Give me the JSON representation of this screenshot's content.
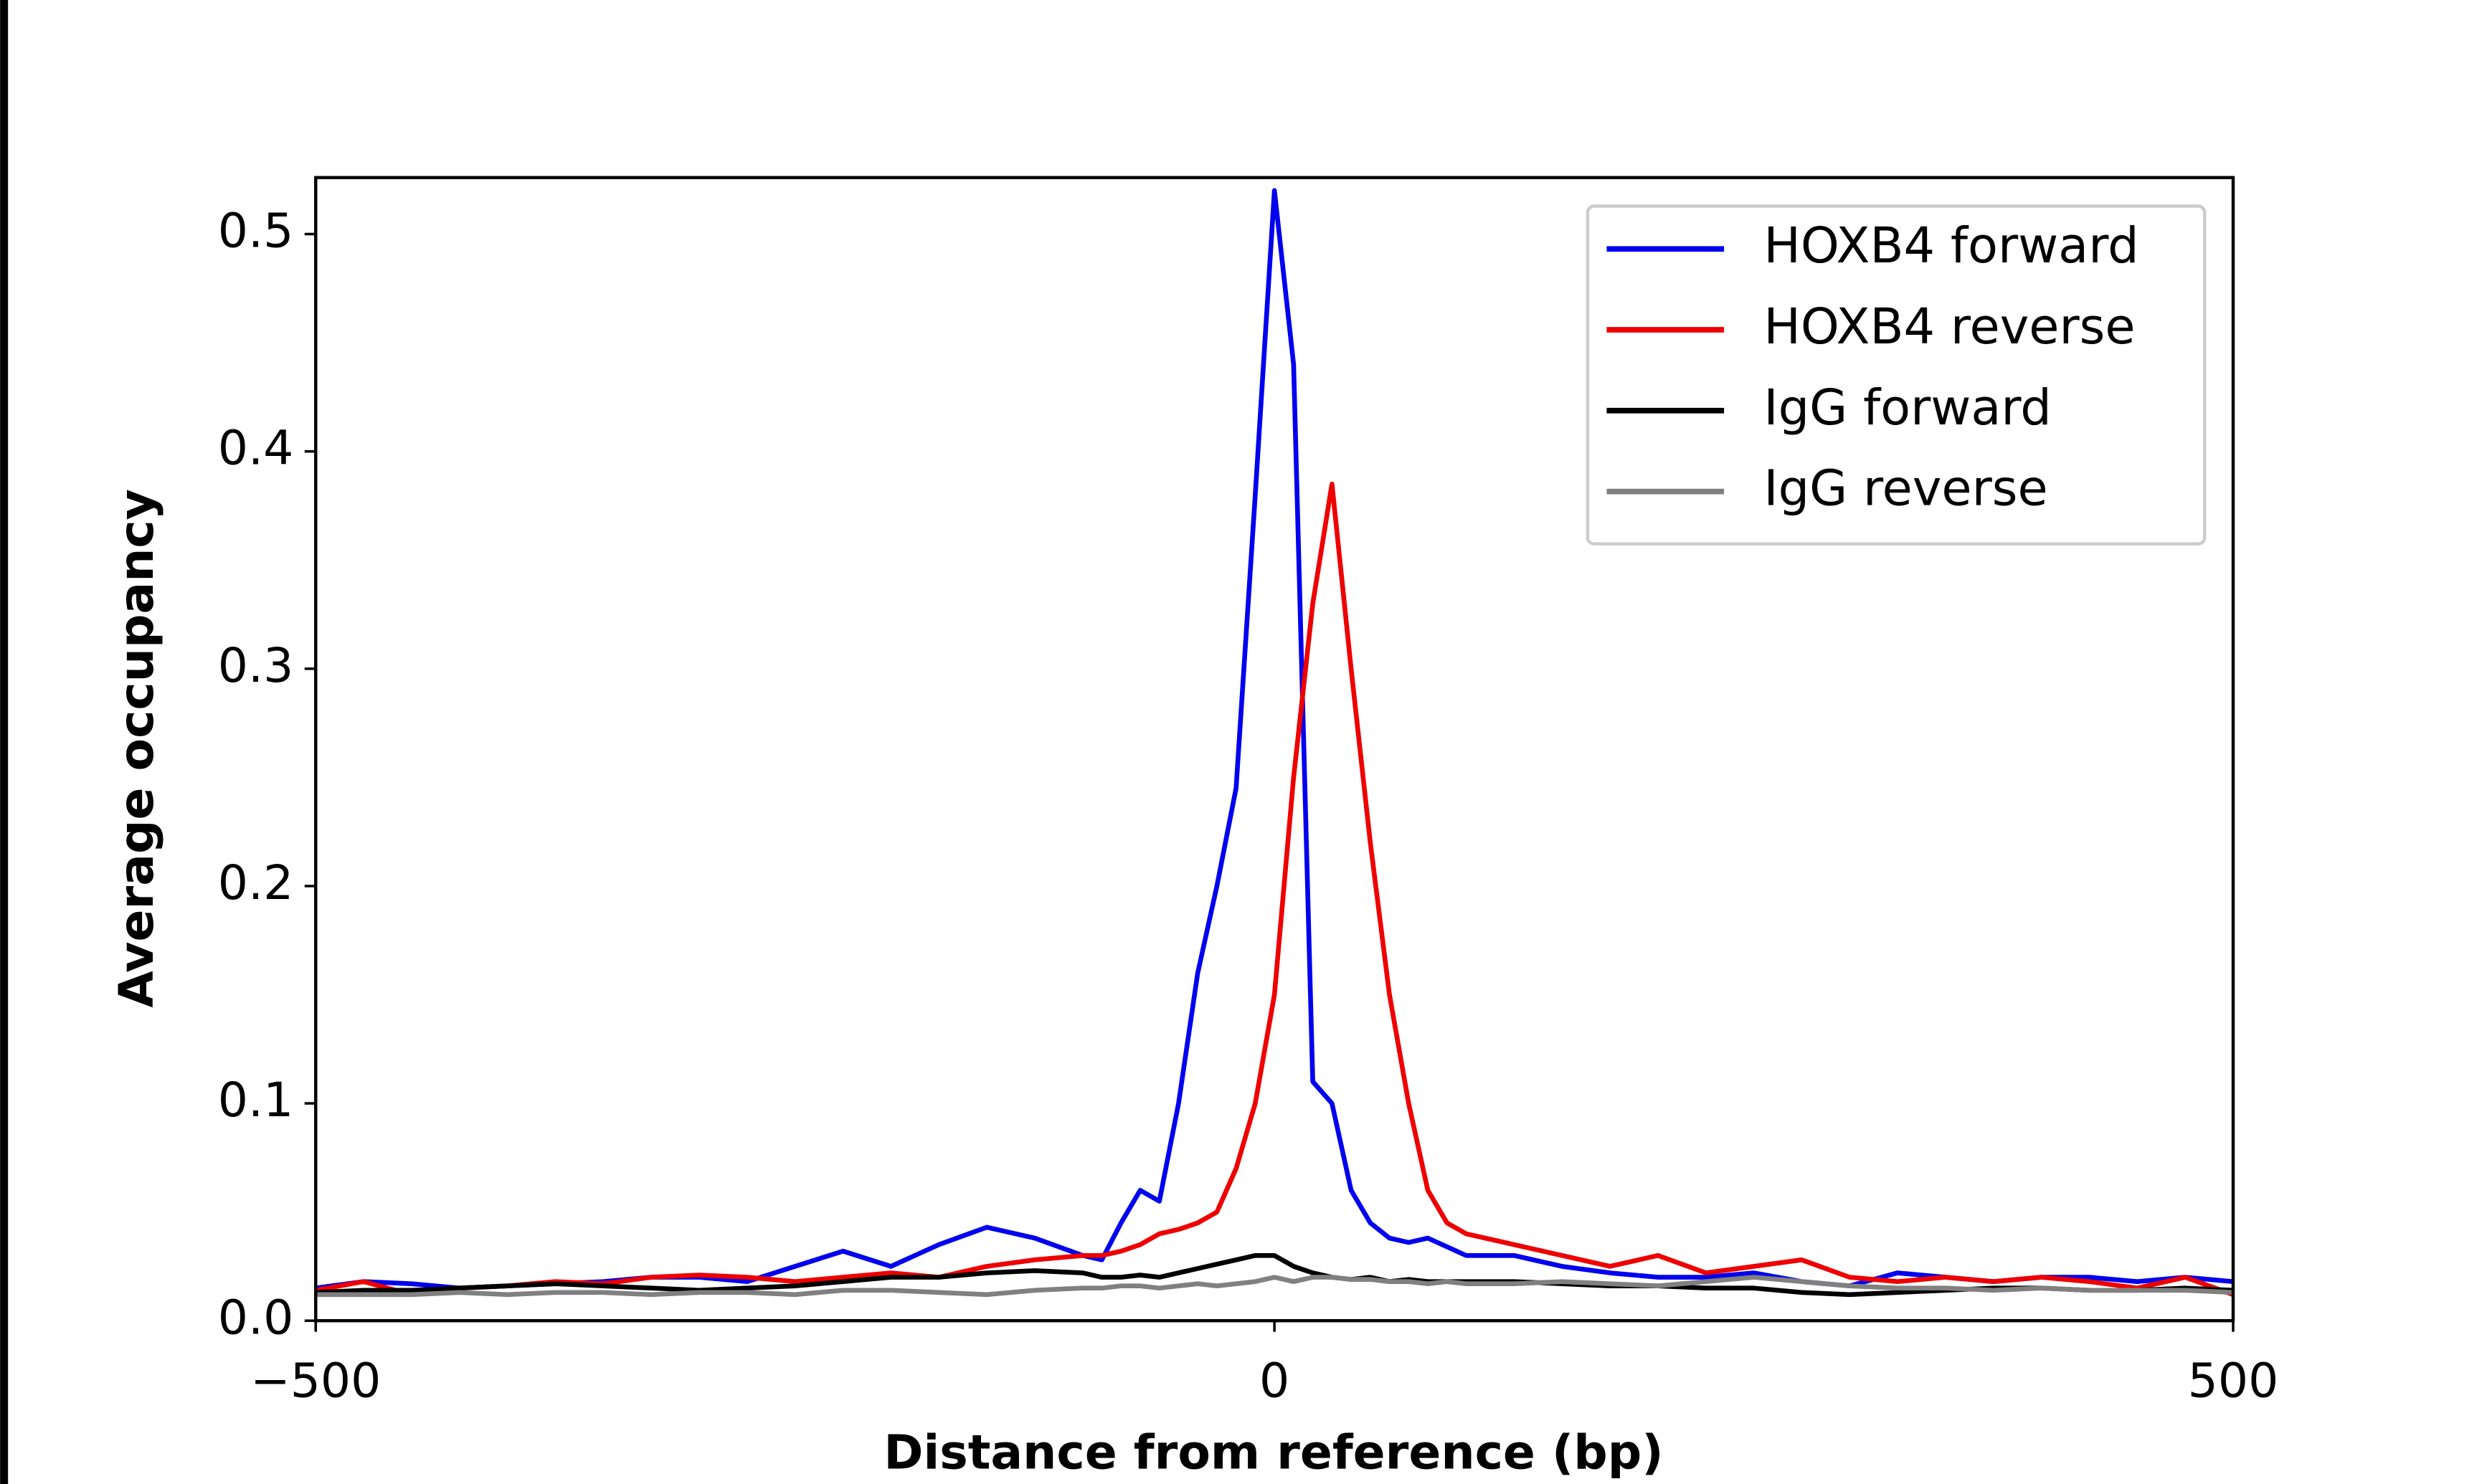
{
  "chart_data": {
    "type": "line",
    "xlabel": "Distance from reference (bp)",
    "ylabel": "Average occupancy",
    "x": [
      -500,
      -475,
      -450,
      -425,
      -400,
      -375,
      -350,
      -325,
      -300,
      -275,
      -250,
      -225,
      -200,
      -175,
      -150,
      -125,
      -100,
      -90,
      -80,
      -70,
      -60,
      -50,
      -40,
      -30,
      -20,
      -10,
      0,
      10,
      20,
      30,
      40,
      50,
      60,
      70,
      80,
      90,
      100,
      125,
      150,
      175,
      200,
      225,
      250,
      275,
      300,
      325,
      350,
      375,
      400,
      425,
      450,
      475,
      500
    ],
    "series": [
      {
        "name": "HOXB4 forward",
        "color": "#0000ee",
        "values": [
          0.015,
          0.018,
          0.017,
          0.015,
          0.016,
          0.017,
          0.018,
          0.02,
          0.02,
          0.018,
          0.025,
          0.032,
          0.025,
          0.035,
          0.043,
          0.038,
          0.03,
          0.028,
          0.045,
          0.06,
          0.055,
          0.1,
          0.16,
          0.2,
          0.245,
          0.38,
          0.52,
          0.44,
          0.11,
          0.1,
          0.06,
          0.045,
          0.038,
          0.036,
          0.038,
          0.034,
          0.03,
          0.03,
          0.025,
          0.022,
          0.02,
          0.02,
          0.022,
          0.018,
          0.016,
          0.022,
          0.02,
          0.018,
          0.02,
          0.02,
          0.018,
          0.02,
          0.018
        ]
      },
      {
        "name": "HOXB4 reverse",
        "color": "#ee0000",
        "values": [
          0.014,
          0.018,
          0.012,
          0.015,
          0.016,
          0.018,
          0.017,
          0.02,
          0.021,
          0.02,
          0.018,
          0.02,
          0.022,
          0.02,
          0.025,
          0.028,
          0.03,
          0.03,
          0.032,
          0.035,
          0.04,
          0.042,
          0.045,
          0.05,
          0.07,
          0.1,
          0.15,
          0.25,
          0.33,
          0.385,
          0.3,
          0.22,
          0.15,
          0.1,
          0.06,
          0.045,
          0.04,
          0.035,
          0.03,
          0.025,
          0.03,
          0.022,
          0.025,
          0.028,
          0.02,
          0.018,
          0.02,
          0.018,
          0.02,
          0.018,
          0.015,
          0.02,
          0.012
        ]
      },
      {
        "name": "IgG forward",
        "color": "#000000",
        "values": [
          0.013,
          0.014,
          0.014,
          0.015,
          0.016,
          0.017,
          0.016,
          0.015,
          0.014,
          0.015,
          0.016,
          0.018,
          0.02,
          0.02,
          0.022,
          0.023,
          0.022,
          0.02,
          0.02,
          0.021,
          0.02,
          0.022,
          0.024,
          0.026,
          0.028,
          0.03,
          0.03,
          0.025,
          0.022,
          0.02,
          0.019,
          0.02,
          0.018,
          0.019,
          0.018,
          0.018,
          0.018,
          0.018,
          0.017,
          0.016,
          0.016,
          0.015,
          0.015,
          0.013,
          0.012,
          0.013,
          0.014,
          0.015,
          0.015,
          0.014,
          0.014,
          0.015,
          0.014
        ]
      },
      {
        "name": "IgG reverse",
        "color": "#808080",
        "values": [
          0.012,
          0.012,
          0.012,
          0.013,
          0.012,
          0.013,
          0.013,
          0.012,
          0.013,
          0.013,
          0.012,
          0.014,
          0.014,
          0.013,
          0.012,
          0.014,
          0.015,
          0.015,
          0.016,
          0.016,
          0.015,
          0.016,
          0.017,
          0.016,
          0.017,
          0.018,
          0.02,
          0.018,
          0.02,
          0.02,
          0.019,
          0.019,
          0.018,
          0.018,
          0.017,
          0.018,
          0.017,
          0.017,
          0.018,
          0.017,
          0.016,
          0.018,
          0.02,
          0.018,
          0.016,
          0.015,
          0.015,
          0.014,
          0.015,
          0.014,
          0.014,
          0.014,
          0.013
        ]
      }
    ],
    "xlim": [
      -500,
      500
    ],
    "ylim": [
      0,
      0.526
    ],
    "xticks": [
      {
        "value": -500,
        "label": "−500"
      },
      0,
      500
    ],
    "yticks": [
      {
        "value": 0,
        "label": "0.0"
      },
      0.1,
      0.2,
      0.3,
      0.4,
      0.5
    ],
    "legend": "upper right",
    "grid": false
  }
}
